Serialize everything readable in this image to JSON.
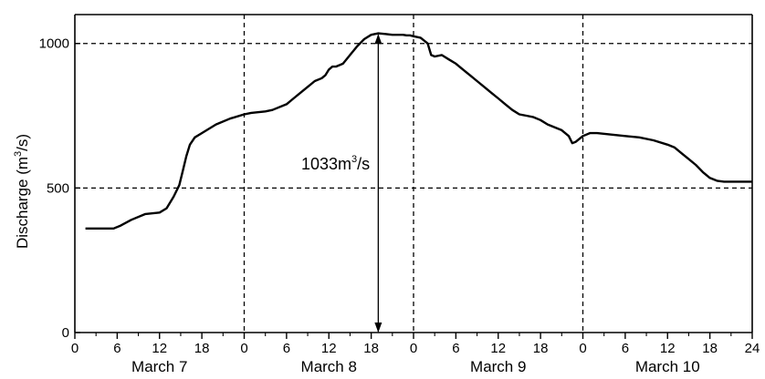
{
  "chart_data": {
    "type": "line",
    "ylabel": "Discharge (m³/s)",
    "ylabel_parts": [
      "Discharge (m",
      "3",
      "/s)"
    ],
    "ylim": [
      0,
      1100
    ],
    "xlim_hours": [
      0,
      96
    ],
    "yticks": [
      0,
      500,
      1000
    ],
    "xticks": [
      {
        "h": 0,
        "label": "0"
      },
      {
        "h": 6,
        "label": "6"
      },
      {
        "h": 12,
        "label": "12"
      },
      {
        "h": 18,
        "label": "18"
      },
      {
        "h": 24,
        "label": "0"
      },
      {
        "h": 30,
        "label": "6"
      },
      {
        "h": 36,
        "label": "12"
      },
      {
        "h": 42,
        "label": "18"
      },
      {
        "h": 48,
        "label": "0"
      },
      {
        "h": 54,
        "label": "6"
      },
      {
        "h": 60,
        "label": "12"
      },
      {
        "h": 66,
        "label": "18"
      },
      {
        "h": 72,
        "label": "0"
      },
      {
        "h": 78,
        "label": "6"
      },
      {
        "h": 84,
        "label": "12"
      },
      {
        "h": 90,
        "label": "18"
      },
      {
        "h": 96,
        "label": "24"
      }
    ],
    "days": [
      {
        "label": "March 7",
        "center_h": 12
      },
      {
        "label": "March 8",
        "center_h": 36
      },
      {
        "label": "March 9",
        "center_h": 60
      },
      {
        "label": "March 10",
        "center_h": 84
      }
    ],
    "grid": {
      "vertical_h": [
        24,
        48,
        72
      ],
      "horizontal_y": [
        500,
        1000
      ],
      "style": "dashed"
    },
    "series": [
      {
        "x_hours": [
          1.5,
          5.5,
          6.5,
          8,
          10,
          12,
          13,
          14,
          14.8,
          15.3,
          15.8,
          16.3,
          17,
          18,
          20,
          22,
          24,
          25,
          27,
          28,
          30,
          31,
          32,
          33,
          34,
          35,
          35.5,
          36,
          36.5,
          37,
          38,
          39,
          40,
          41,
          42,
          43,
          44,
          45,
          46,
          46.5,
          47,
          47.5,
          48,
          49,
          50,
          50.5,
          51,
          52,
          53,
          54,
          55,
          56,
          57,
          58,
          59,
          60,
          61,
          62,
          63,
          64,
          65,
          66,
          67,
          68,
          69,
          70,
          70.5,
          71,
          72,
          73,
          74,
          76,
          78,
          80,
          82,
          84,
          85,
          86,
          87,
          88,
          89,
          90,
          91,
          92,
          93,
          94,
          95,
          96
        ],
        "y": [
          360,
          360,
          370,
          390,
          410,
          415,
          430,
          470,
          510,
          560,
          610,
          650,
          675,
          690,
          720,
          740,
          755,
          760,
          765,
          770,
          790,
          810,
          830,
          850,
          870,
          880,
          890,
          910,
          920,
          920,
          930,
          960,
          990,
          1015,
          1030,
          1035,
          1033,
          1030,
          1030,
          1030,
          1028,
          1028,
          1025,
          1020,
          1000,
          960,
          955,
          960,
          945,
          930,
          910,
          890,
          870,
          850,
          830,
          810,
          790,
          770,
          755,
          750,
          745,
          735,
          720,
          710,
          700,
          680,
          655,
          660,
          680,
          690,
          690,
          685,
          680,
          675,
          665,
          650,
          640,
          620,
          600,
          580,
          555,
          535,
          525,
          522,
          522,
          522,
          522,
          522
        ]
      }
    ],
    "annotation": {
      "value": 1033,
      "text_parts": [
        "1033m",
        "3",
        "/s"
      ],
      "at_hour": 43,
      "from_y": 0,
      "to_y": 1033
    }
  }
}
